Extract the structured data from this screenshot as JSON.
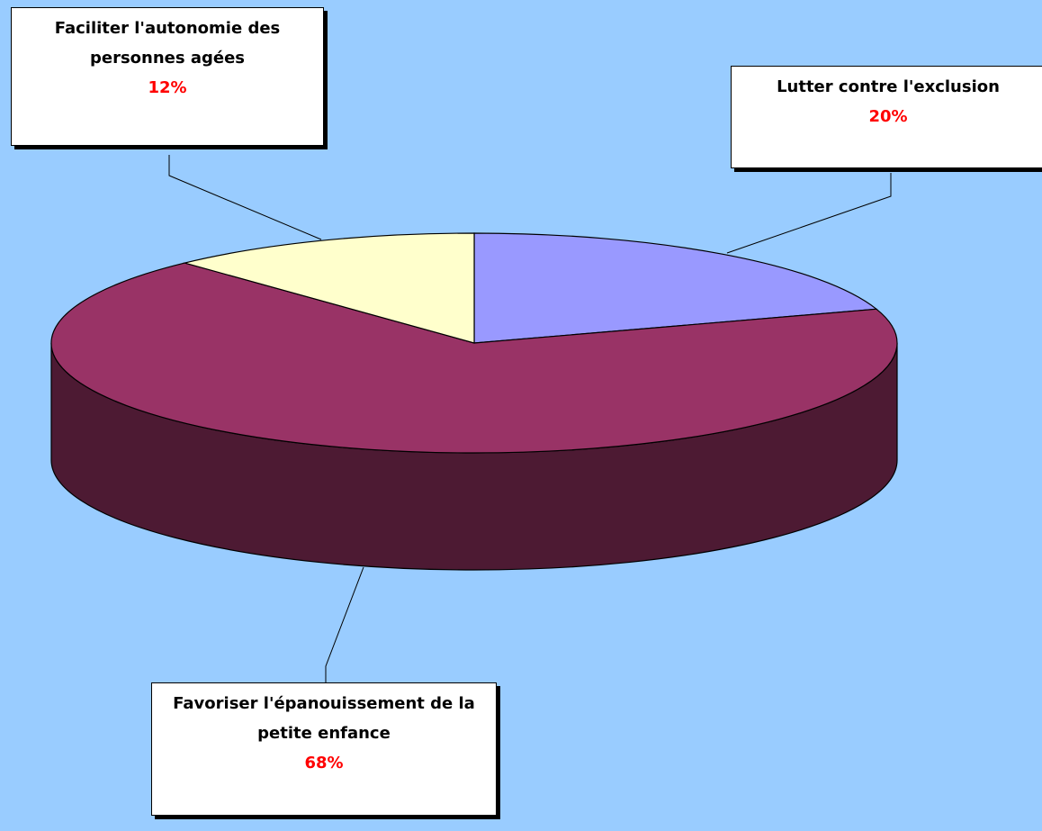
{
  "chart_data": {
    "type": "pie",
    "categories": [
      "Lutter contre l'exclusion",
      "Favoriser l'épanouissement de la petite enfance",
      "Faciliter l'autonomie des personnes agées"
    ],
    "values": [
      20,
      68,
      12
    ],
    "value_labels": [
      "20%",
      "68%",
      "12%"
    ],
    "colors": [
      "#9999ff",
      "#993366",
      "#ffffcc"
    ]
  }
}
